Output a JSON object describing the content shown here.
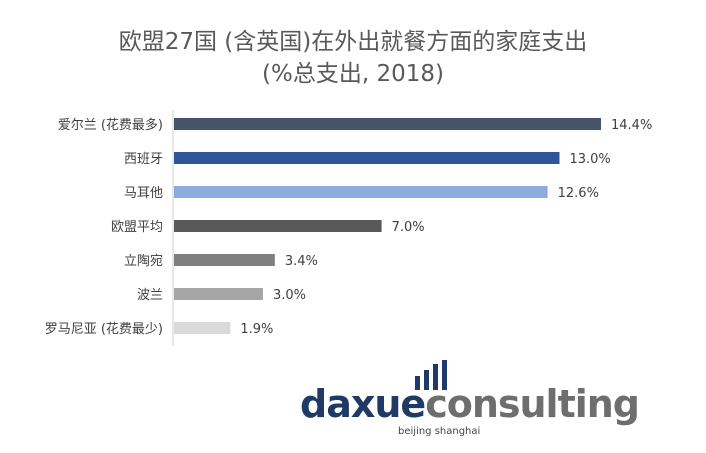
{
  "title": {
    "line1": "欧盟27国 (含英国)在外出就餐方面的家庭支出",
    "line2": "(%总支出, 2018)"
  },
  "chart_data": {
    "type": "bar",
    "orientation": "horizontal",
    "title": "欧盟27国 (含英国)在外出就餐方面的家庭支出 (%总支出, 2018)",
    "categories": [
      "爱尔兰 (花费最多)",
      "西班牙",
      "马耳他",
      "欧盟平均",
      "立陶宛",
      "波兰",
      "罗马尼亚 (花费最少)"
    ],
    "values": [
      14.4,
      13.0,
      12.6,
      7.0,
      3.4,
      3.0,
      1.9
    ],
    "value_labels": [
      "14.4%",
      "13.0%",
      "12.6%",
      "7.0%",
      "3.4%",
      "3.0%",
      "1.9%"
    ],
    "colors": [
      "#44546a",
      "#2f5597",
      "#8faadc",
      "#595959",
      "#7f7f7f",
      "#a6a6a6",
      "#d9d9d9"
    ],
    "xlim": [
      0,
      15
    ],
    "grid": false,
    "legend": "none"
  },
  "logo": {
    "part1": "daxue",
    "part2": "consulting",
    "sub": "beijing shanghai",
    "icon": "bar-chart-icon"
  }
}
